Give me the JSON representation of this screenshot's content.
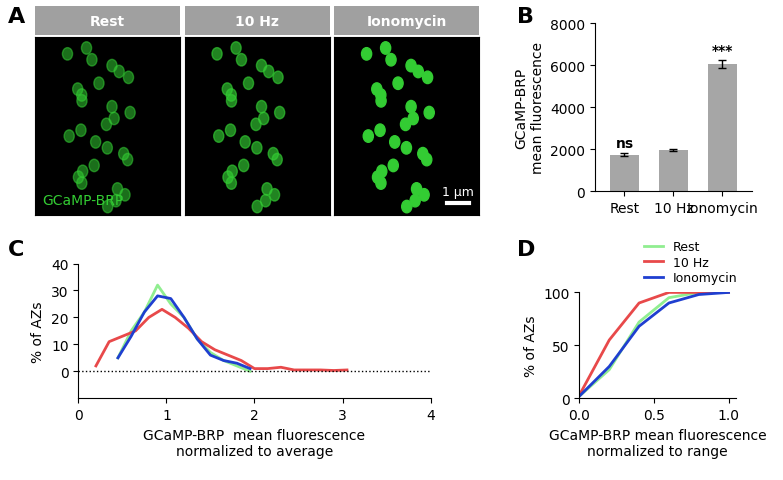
{
  "image_panel": {
    "label": "A",
    "titles": [
      "Rest",
      "10 Hz",
      "Ionomycin"
    ],
    "channel_label": "GCaMP-BRP",
    "scale_bar": "1 µm"
  },
  "chart_data": [
    {
      "label": "B",
      "type": "bar",
      "categories": [
        "Rest",
        "10 Hz",
        "Ionomycin"
      ],
      "values": [
        1750,
        1950,
        6050
      ],
      "errors": [
        60,
        50,
        200
      ],
      "color": "#a6a6a6",
      "annotations": [
        {
          "category": "Rest",
          "text": "ns"
        },
        {
          "category": "Ionomycin",
          "text": "***"
        }
      ],
      "y_label": "GCaMP-BRP\nmean fluorescence",
      "ylim": [
        0,
        8000
      ],
      "yticks": [
        0,
        2000,
        4000,
        6000,
        8000
      ]
    },
    {
      "label": "C",
      "type": "line",
      "x_label": "GCaMP-BRP  mean fluorescence\nnormalized to average",
      "y_label": "% of AZs",
      "xlim": [
        0,
        4
      ],
      "xticks": [
        0,
        1,
        2,
        3,
        4
      ],
      "ylim": [
        -10,
        40
      ],
      "yticks": [
        0,
        10,
        20,
        30,
        40
      ],
      "reference_line": 0,
      "series": [
        {
          "name": "Rest",
          "color": "#90ee90",
          "x": [
            0.45,
            0.6,
            0.75,
            0.9,
            1.05,
            1.2,
            1.35,
            1.5,
            1.65,
            1.8,
            1.95
          ],
          "values": [
            5,
            15,
            22,
            32,
            25,
            20,
            12,
            7,
            4,
            2,
            0
          ]
        },
        {
          "name": "10 Hz",
          "color": "#e8494a",
          "x": [
            0.2,
            0.35,
            0.5,
            0.65,
            0.8,
            0.95,
            1.1,
            1.25,
            1.4,
            1.55,
            1.7,
            1.85,
            2.0,
            2.15,
            2.3,
            2.45,
            2.6,
            2.75,
            2.9,
            3.05
          ],
          "values": [
            2,
            11,
            13,
            15,
            20,
            23,
            20,
            16,
            11,
            8,
            6,
            4,
            1,
            1,
            1.5,
            0.5,
            0.5,
            0.5,
            0.3,
            0.5
          ]
        },
        {
          "name": "Ionomycin",
          "color": "#1f3fd0",
          "x": [
            0.45,
            0.6,
            0.75,
            0.9,
            1.05,
            1.2,
            1.35,
            1.5,
            1.65,
            1.8,
            1.95
          ],
          "values": [
            5,
            13,
            22,
            28,
            27,
            20,
            12,
            6,
            4,
            3,
            1
          ]
        }
      ]
    },
    {
      "label": "D",
      "type": "line",
      "x_label": "GCaMP-BRP mean fluorescence\nnormalized to range",
      "y_label": "% of AZs",
      "xlim": [
        0,
        1.05
      ],
      "xticks": [
        {
          "value": 0,
          "label": "0.0"
        },
        {
          "value": 0.5,
          "label": "0.5"
        },
        {
          "value": 1.0,
          "label": "1.0"
        }
      ],
      "ylim": [
        0,
        100
      ],
      "yticks": [
        0,
        50,
        100
      ],
      "legend": "lower right",
      "series": [
        {
          "name": "Rest",
          "color": "#90ee90",
          "x": [
            0,
            0.2,
            0.4,
            0.6,
            0.8,
            1.0
          ],
          "values": [
            2,
            27,
            72,
            95,
            100,
            100
          ]
        },
        {
          "name": "10 Hz",
          "color": "#e8494a",
          "x": [
            0,
            0.2,
            0.4,
            0.6,
            0.8,
            1.0
          ],
          "values": [
            3,
            55,
            90,
            100,
            100,
            100
          ]
        },
        {
          "name": "Ionomycin",
          "color": "#1f3fd0",
          "x": [
            0,
            0.2,
            0.4,
            0.6,
            0.8,
            1.0
          ],
          "values": [
            2,
            30,
            68,
            90,
            98,
            100
          ]
        }
      ]
    }
  ]
}
